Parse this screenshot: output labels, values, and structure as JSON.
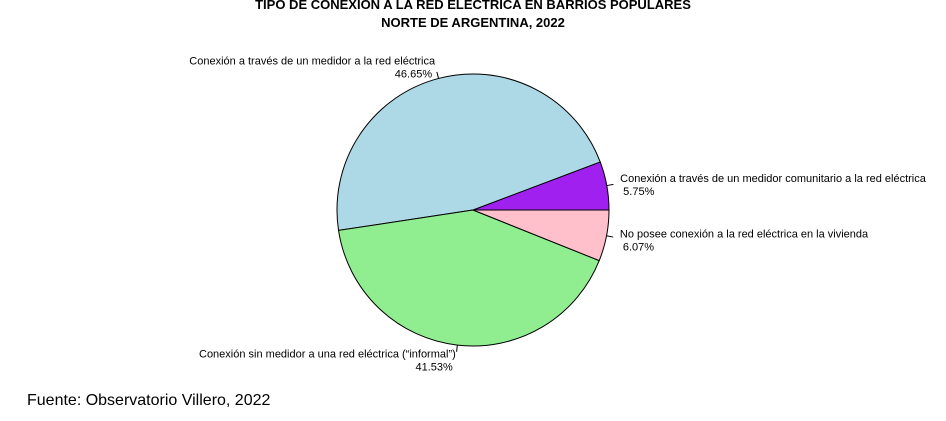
{
  "chart_data": {
    "type": "pie",
    "title_lines": [
      "TIPO DE CONEXIÓN A LA RED ELÉCTRICA EN BARRIOS POPULARES",
      "NORTE DE ARGENTINA, 2022"
    ],
    "slices": [
      {
        "label": "Conexión a través de un medidor comunitario a la red eléctrica",
        "value": 5.75,
        "pct_label": "5.75%",
        "color": "#a020f0"
      },
      {
        "label": "Conexión a través de un medidor a la red eléctrica",
        "value": 46.65,
        "pct_label": "46.65%",
        "color": "#add8e6"
      },
      {
        "label": "Conexión sin medidor a una red eléctrica (“informal”)",
        "value": 41.53,
        "pct_label": "41.53%",
        "color": "#90ee90"
      },
      {
        "label": "No posee conexión a la red eléctrica en la vivienda",
        "value": 6.07,
        "pct_label": "6.07%",
        "color": "#ffc0cb"
      }
    ],
    "start_angle_deg": 0,
    "direction": "counterclockwise"
  },
  "source_note": "Fuente: Observatorio Villero, 2022"
}
